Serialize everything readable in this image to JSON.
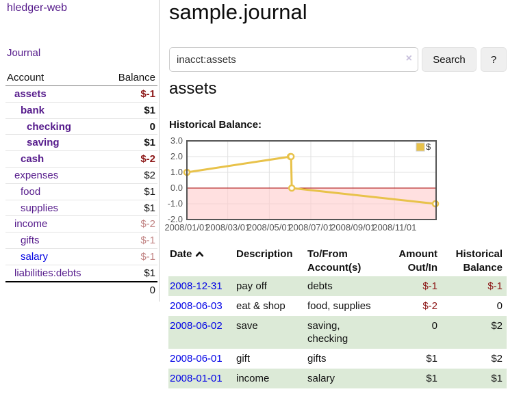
{
  "sidebar": {
    "brand": "hledger-web",
    "nav": {
      "journal_label": "Journal"
    },
    "accounts": {
      "header": {
        "account": "Account",
        "balance": "Balance"
      },
      "rows": [
        {
          "label": "assets",
          "level": 1,
          "bold": true,
          "link": "purple",
          "balance": "$-1",
          "tone": "neg-strong"
        },
        {
          "label": "bank",
          "level": 2,
          "bold": true,
          "link": "purple",
          "balance": "$1",
          "tone": "plain"
        },
        {
          "label": "checking",
          "level": 3,
          "bold": true,
          "link": "purple",
          "balance": "0",
          "tone": "plain"
        },
        {
          "label": "saving",
          "level": 3,
          "bold": true,
          "link": "purple",
          "balance": "$1",
          "tone": "plain"
        },
        {
          "label": "cash",
          "level": 2,
          "bold": true,
          "link": "purple",
          "balance": "$-2",
          "tone": "neg-strong"
        },
        {
          "label": "expenses",
          "level": 1,
          "bold": false,
          "link": "purple",
          "balance": "$2",
          "tone": "plain"
        },
        {
          "label": "food",
          "level": 2,
          "bold": false,
          "link": "purple",
          "balance": "$1",
          "tone": "plain"
        },
        {
          "label": "supplies",
          "level": 2,
          "bold": false,
          "link": "purple",
          "balance": "$1",
          "tone": "plain"
        },
        {
          "label": "income",
          "level": 1,
          "bold": false,
          "link": "purple",
          "balance": "$-2",
          "tone": "neg-soft"
        },
        {
          "label": "gifts",
          "level": 2,
          "bold": false,
          "link": "purple",
          "balance": "$-1",
          "tone": "neg-soft"
        },
        {
          "label": "salary",
          "level": 2,
          "bold": false,
          "link": "blue",
          "balance": "$-1",
          "tone": "neg-soft"
        },
        {
          "label": "liabilities:debts",
          "level": 1,
          "bold": false,
          "link": "purple",
          "balance": "$1",
          "tone": "plain"
        }
      ],
      "total": "0"
    }
  },
  "header": {
    "title": "sample.journal"
  },
  "search": {
    "value": "inacct:assets",
    "clear_label": "×",
    "button_label": "Search",
    "help_label": "?"
  },
  "account_page": {
    "title": "assets",
    "chart_label": "Historical Balance:"
  },
  "chart_data": {
    "type": "line",
    "title": "Historical Balance",
    "xlabel": "",
    "ylabel": "",
    "xlim": [
      "2008-01-01",
      "2009-01-01"
    ],
    "ylim": [
      -2,
      3
    ],
    "grid": true,
    "legend_position": "top-right",
    "plot_border_color": "#545454",
    "grid_color": "#e0e0e0",
    "negative_region_color": "#ffcccc",
    "zero_line_color": "#a40000",
    "series": [
      {
        "name": "$",
        "color": "#e8c24a",
        "points": [
          [
            "2008-01-01",
            1
          ],
          [
            "2008-06-01",
            2
          ],
          [
            "2008-06-02",
            2
          ],
          [
            "2008-06-03",
            0
          ],
          [
            "2008-12-31",
            -1
          ]
        ]
      }
    ],
    "yticks": [
      {
        "v": 3,
        "label": "3.0"
      },
      {
        "v": 2,
        "label": "2.0"
      },
      {
        "v": 1,
        "label": "1.0"
      },
      {
        "v": 0,
        "label": "0.0"
      },
      {
        "v": -1,
        "label": "-1.0"
      },
      {
        "v": -2,
        "label": "-2.0"
      }
    ],
    "xticks": [
      {
        "v": "2008-01-01",
        "label": "2008/01/01"
      },
      {
        "v": "2008-03-01",
        "label": "2008/03/01"
      },
      {
        "v": "2008-05-01",
        "label": "2008/05/01"
      },
      {
        "v": "2008-07-01",
        "label": "2008/07/01"
      },
      {
        "v": "2008-09-01",
        "label": "2008/09/01"
      },
      {
        "v": "2008-11-01",
        "label": "2008/11/01"
      }
    ]
  },
  "transactions": {
    "columns": [
      {
        "line1": "Date",
        "line2": ""
      },
      {
        "line1": "Description",
        "line2": ""
      },
      {
        "line1": "To/From",
        "line2": "Account(s)"
      },
      {
        "line1": "Amount",
        "line2": "Out/In"
      },
      {
        "line1": "Historical",
        "line2": "Balance"
      }
    ],
    "rows": [
      {
        "date": "2008-12-31",
        "description": "pay off",
        "accounts": "debts",
        "amount": "$-1",
        "amount_tone": "neg",
        "balance": "$-1",
        "balance_tone": "neg"
      },
      {
        "date": "2008-06-03",
        "description": "eat & shop",
        "accounts": "food, supplies",
        "amount": "$-2",
        "amount_tone": "neg",
        "balance": "0",
        "balance_tone": "plain"
      },
      {
        "date": "2008-06-02",
        "description": "save",
        "accounts": "saving, checking",
        "amount": "0",
        "amount_tone": "plain",
        "balance": "$2",
        "balance_tone": "plain"
      },
      {
        "date": "2008-06-01",
        "description": "gift",
        "accounts": "gifts",
        "amount": "$1",
        "amount_tone": "plain",
        "balance": "$2",
        "balance_tone": "plain"
      },
      {
        "date": "2008-01-01",
        "description": "income",
        "accounts": "salary",
        "amount": "$1",
        "amount_tone": "plain",
        "balance": "$1",
        "balance_tone": "plain"
      }
    ]
  }
}
